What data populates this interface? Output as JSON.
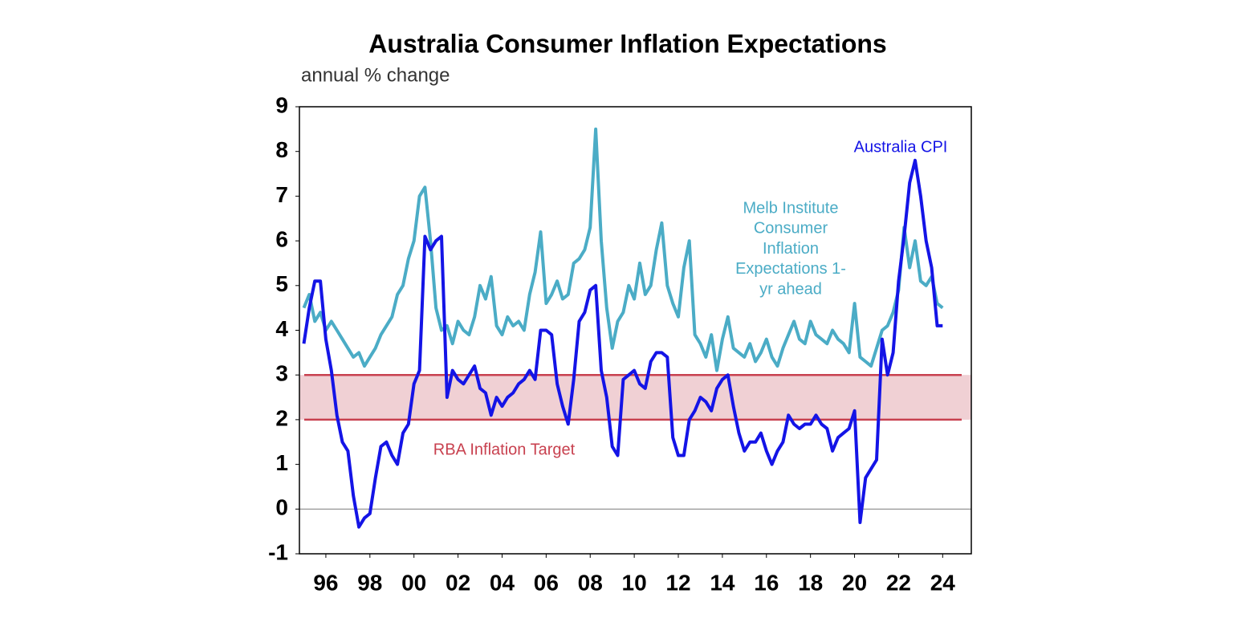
{
  "chart_data": {
    "type": "line",
    "title": "Australia Consumer Inflation Expectations",
    "subtitle": "annual % change",
    "x": [
      1995,
      1995.25,
      1995.5,
      1995.75,
      1996,
      1996.25,
      1996.5,
      1996.75,
      1997,
      1997.25,
      1997.5,
      1997.75,
      1998,
      1998.25,
      1998.5,
      1998.75,
      1999,
      1999.25,
      1999.5,
      1999.75,
      2000,
      2000.25,
      2000.5,
      2000.75,
      2001,
      2001.25,
      2001.5,
      2001.75,
      2002,
      2002.25,
      2002.5,
      2002.75,
      2003,
      2003.25,
      2003.5,
      2003.75,
      2004,
      2004.25,
      2004.5,
      2004.75,
      2005,
      2005.25,
      2005.5,
      2005.75,
      2006,
      2006.25,
      2006.5,
      2006.75,
      2007,
      2007.25,
      2007.5,
      2007.75,
      2008,
      2008.25,
      2008.5,
      2008.75,
      2009,
      2009.25,
      2009.5,
      2009.75,
      2010,
      2010.25,
      2010.5,
      2010.75,
      2011,
      2011.25,
      2011.5,
      2011.75,
      2012,
      2012.25,
      2012.5,
      2012.75,
      2013,
      2013.25,
      2013.5,
      2013.75,
      2014,
      2014.25,
      2014.5,
      2014.75,
      2015,
      2015.25,
      2015.5,
      2015.75,
      2016,
      2016.25,
      2016.5,
      2016.75,
      2017,
      2017.25,
      2017.5,
      2017.75,
      2018,
      2018.25,
      2018.5,
      2018.75,
      2019,
      2019.25,
      2019.5,
      2019.75,
      2020,
      2020.25,
      2020.5,
      2020.75,
      2021,
      2021.25,
      2021.5,
      2021.75,
      2022,
      2022.25,
      2022.5,
      2022.75,
      2023,
      2023.25,
      2023.5,
      2023.75,
      2024
    ],
    "series": [
      {
        "name": "Melb Institute Consumer Inflation Expectations 1-yr ahead",
        "color": "#4bacc6",
        "values": [
          4.5,
          4.8,
          4.2,
          4.4,
          4.0,
          4.2,
          4.0,
          3.8,
          3.6,
          3.4,
          3.5,
          3.2,
          3.4,
          3.6,
          3.9,
          4.1,
          4.3,
          4.8,
          5.0,
          5.6,
          6.0,
          7.0,
          7.2,
          6.0,
          4.5,
          4.0,
          4.1,
          3.7,
          4.2,
          4.0,
          3.9,
          4.3,
          5.0,
          4.7,
          5.2,
          4.1,
          3.9,
          4.3,
          4.1,
          4.2,
          4.0,
          4.8,
          5.3,
          6.2,
          4.6,
          4.8,
          5.1,
          4.7,
          4.8,
          5.5,
          5.6,
          5.8,
          6.3,
          8.5,
          6.0,
          4.5,
          3.6,
          4.2,
          4.4,
          5.0,
          4.7,
          5.5,
          4.8,
          5.0,
          5.8,
          6.4,
          5.0,
          4.6,
          4.3,
          5.4,
          6.0,
          3.9,
          3.7,
          3.4,
          3.9,
          3.1,
          3.8,
          4.3,
          3.6,
          3.5,
          3.4,
          3.7,
          3.3,
          3.5,
          3.8,
          3.4,
          3.2,
          3.6,
          3.9,
          4.2,
          3.8,
          3.7,
          4.2,
          3.9,
          3.8,
          3.7,
          4.0,
          3.8,
          3.7,
          3.5,
          4.6,
          3.4,
          3.3,
          3.2,
          3.6,
          4.0,
          4.1,
          4.4,
          4.9,
          6.3,
          5.4,
          6.0,
          5.1,
          5.0,
          5.2,
          4.6,
          4.5
        ]
      },
      {
        "name": "Australia CPI",
        "color": "#1414e6",
        "values": [
          3.7,
          4.5,
          5.1,
          5.1,
          3.8,
          3.1,
          2.1,
          1.5,
          1.3,
          0.3,
          -0.4,
          -0.2,
          -0.1,
          0.7,
          1.4,
          1.5,
          1.2,
          1.0,
          1.7,
          1.9,
          2.8,
          3.1,
          6.1,
          5.8,
          6.0,
          6.1,
          2.5,
          3.1,
          2.9,
          2.8,
          3.0,
          3.2,
          2.7,
          2.6,
          2.1,
          2.5,
          2.3,
          2.5,
          2.6,
          2.8,
          2.9,
          3.1,
          2.9,
          4.0,
          4.0,
          3.9,
          2.8,
          2.3,
          1.9,
          2.9,
          4.2,
          4.4,
          4.9,
          5.0,
          3.1,
          2.5,
          1.4,
          1.2,
          2.9,
          3.0,
          3.1,
          2.8,
          2.7,
          3.3,
          3.5,
          3.5,
          3.4,
          1.6,
          1.2,
          1.2,
          2.0,
          2.2,
          2.5,
          2.4,
          2.2,
          2.7,
          2.9,
          3.0,
          2.3,
          1.7,
          1.3,
          1.5,
          1.5,
          1.7,
          1.3,
          1.0,
          1.3,
          1.5,
          2.1,
          1.9,
          1.8,
          1.9,
          1.9,
          2.1,
          1.9,
          1.8,
          1.3,
          1.6,
          1.7,
          1.8,
          2.2,
          -0.3,
          0.7,
          0.9,
          1.1,
          3.8,
          3.0,
          3.5,
          5.1,
          6.1,
          7.3,
          7.8,
          7.0,
          6.0,
          5.4,
          4.1,
          4.1
        ]
      }
    ],
    "annotations": [
      "Australia CPI",
      [
        "Melb Institute",
        "Consumer",
        "Inflation",
        "Expectations 1-",
        "yr ahead"
      ],
      "RBA Inflation Target"
    ],
    "target_band": [
      2,
      3
    ],
    "band_color": "#f0d0d4",
    "band_line_color": "#c8414f",
    "xlim": [
      1994.8,
      2025.3
    ],
    "xticks": [
      {
        "value": 1996,
        "label": "96"
      },
      {
        "value": 1998,
        "label": "98"
      },
      {
        "value": 2000,
        "label": "00"
      },
      {
        "value": 2002,
        "label": "02"
      },
      {
        "value": 2004,
        "label": "04"
      },
      {
        "value": 2006,
        "label": "06"
      },
      {
        "value": 2008,
        "label": "08"
      },
      {
        "value": 2010,
        "label": "10"
      },
      {
        "value": 2012,
        "label": "12"
      },
      {
        "value": 2014,
        "label": "14"
      },
      {
        "value": 2016,
        "label": "16"
      },
      {
        "value": 2018,
        "label": "18"
      },
      {
        "value": 2020,
        "label": "20"
      },
      {
        "value": 2022,
        "label": "22"
      },
      {
        "value": 2024,
        "label": "24"
      }
    ],
    "ylim": [
      -1,
      9
    ],
    "yticks": [
      -1,
      0,
      1,
      2,
      3,
      4,
      5,
      6,
      7,
      8,
      9
    ],
    "grid": false
  }
}
